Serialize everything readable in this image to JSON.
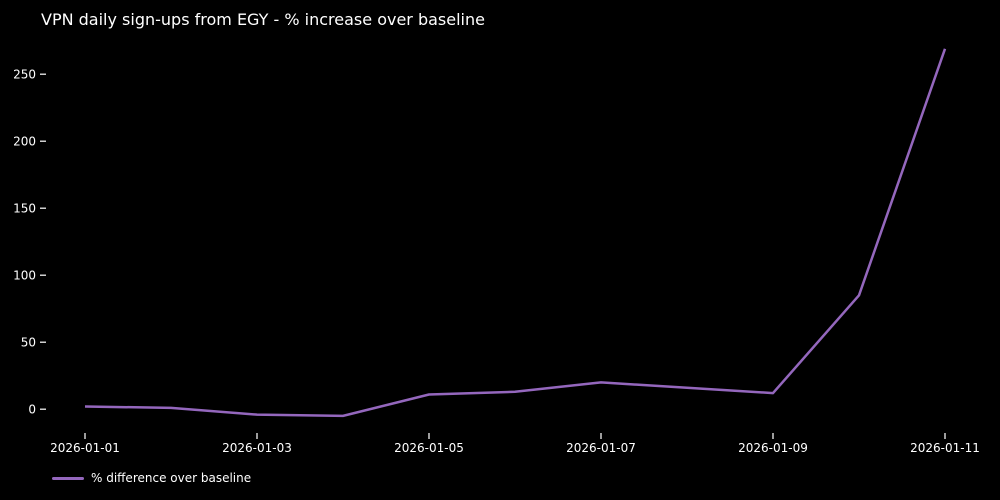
{
  "title": "VPN daily sign-ups from EGY - % increase over baseline",
  "colors": {
    "background": "#000000",
    "text": "#ffffff",
    "tick": "#e0e0e0",
    "line": "#9467bd"
  },
  "legend": {
    "label": "% difference over baseline"
  },
  "chart_data": {
    "type": "line",
    "title": "VPN daily sign-ups from EGY - % increase over baseline",
    "xlabel": "",
    "ylabel": "",
    "x": [
      "2026-01-01",
      "2026-01-02",
      "2026-01-03",
      "2026-01-04",
      "2026-01-05",
      "2026-01-06",
      "2026-01-07",
      "2026-01-08",
      "2026-01-09",
      "2026-01-10",
      "2026-01-11"
    ],
    "series": [
      {
        "name": "% difference over baseline",
        "values": [
          2,
          1,
          -4,
          -5,
          11,
          13,
          20,
          16,
          12,
          85,
          269
        ],
        "color": "#9467bd"
      }
    ],
    "yticks": [
      0,
      50,
      100,
      150,
      200,
      250
    ],
    "xtick_labels": [
      "2026-01-01",
      "2026-01-03",
      "2026-01-05",
      "2026-01-07",
      "2026-01-09",
      "2026-01-11"
    ],
    "ylim": [
      -17,
      283
    ],
    "grid": false,
    "legend_position": "lower-left-outside",
    "background": "black"
  }
}
